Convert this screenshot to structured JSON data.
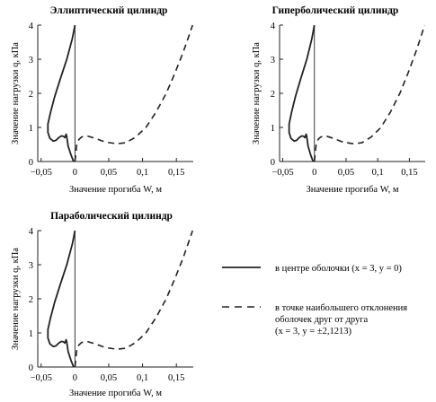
{
  "chart_data": [
    {
      "type": "line",
      "title": "Эллиптический цилиндр",
      "xlabel": "Значение прогиба W, м",
      "ylabel": "Значение нагрузки q, кПа",
      "xlim": [
        -0.055,
        0.175
      ],
      "ylim": [
        0,
        4
      ],
      "xticks": [
        "−0,05",
        "0",
        "0,05",
        "0,1",
        "0,15"
      ],
      "yticks": [
        "0",
        "1",
        "2",
        "3",
        "4"
      ],
      "series": [
        {
          "name": "в центре оболочки (x = 3, y = 0)",
          "style": "solid",
          "x": [
            0.0,
            -0.004,
            -0.012,
            -0.022,
            -0.03,
            -0.036,
            -0.04,
            -0.04,
            -0.037,
            -0.032,
            -0.028,
            -0.024,
            -0.02,
            -0.017,
            -0.015,
            -0.013,
            -0.012,
            -0.01,
            -0.006,
            -0.004,
            -0.003,
            -0.002
          ],
          "y": [
            4.0,
            3.6,
            3.0,
            2.4,
            1.9,
            1.45,
            1.1,
            0.85,
            0.68,
            0.6,
            0.62,
            0.7,
            0.75,
            0.74,
            0.7,
            0.8,
            0.72,
            0.45,
            0.2,
            0.1,
            0.05,
            0.0
          ]
        },
        {
          "name": "в точке наибольшего отклонения оболочек друг от друга (x = 3, y = ±2,1213)",
          "style": "dashed",
          "x": [
            0.0,
            0.003,
            0.006,
            0.01,
            0.018,
            0.03,
            0.045,
            0.062,
            0.075,
            0.09,
            0.105,
            0.12,
            0.135,
            0.148,
            0.16,
            0.168,
            0.174
          ],
          "y": [
            0.0,
            0.55,
            0.65,
            0.72,
            0.75,
            0.68,
            0.57,
            0.52,
            0.55,
            0.72,
            1.0,
            1.45,
            2.0,
            2.6,
            3.2,
            3.65,
            4.0
          ]
        }
      ]
    },
    {
      "type": "line",
      "title": "Гиперболический цилиндр",
      "xlabel": "Значение прогиба W, м",
      "ylabel": "Значение нагрузки q, кПа",
      "xlim": [
        -0.055,
        0.175
      ],
      "ylim": [
        0,
        4
      ],
      "xticks": [
        "−0,05",
        "0",
        "0,05",
        "0,1",
        "0,15"
      ],
      "yticks": [
        "0",
        "1",
        "2",
        "3",
        "4"
      ],
      "series": [
        {
          "name": "в центре оболочки (x = 3, y = 0)",
          "style": "solid",
          "x": [
            0.0,
            -0.004,
            -0.012,
            -0.022,
            -0.03,
            -0.036,
            -0.04,
            -0.04,
            -0.037,
            -0.032,
            -0.028,
            -0.024,
            -0.02,
            -0.017,
            -0.015,
            -0.013,
            -0.012,
            -0.01,
            -0.006,
            -0.004,
            -0.003,
            -0.002
          ],
          "y": [
            4.0,
            3.6,
            3.0,
            2.4,
            1.9,
            1.45,
            1.1,
            0.85,
            0.68,
            0.6,
            0.62,
            0.7,
            0.75,
            0.74,
            0.7,
            0.8,
            0.72,
            0.45,
            0.2,
            0.1,
            0.05,
            0.0
          ]
        },
        {
          "name": "в точке наибольшего отклонения оболочек друг от друга (x = 3, y = ±2,1213)",
          "style": "dashed",
          "x": [
            0.0,
            0.003,
            0.006,
            0.01,
            0.018,
            0.03,
            0.045,
            0.062,
            0.075,
            0.09,
            0.105,
            0.12,
            0.135,
            0.148,
            0.16,
            0.168,
            0.174
          ],
          "y": [
            0.0,
            0.55,
            0.65,
            0.72,
            0.75,
            0.68,
            0.57,
            0.52,
            0.55,
            0.72,
            1.0,
            1.45,
            2.0,
            2.6,
            3.2,
            3.65,
            4.0
          ]
        }
      ]
    },
    {
      "type": "line",
      "title": "Параболический цилиндр",
      "xlabel": "Значение прогиба W, м",
      "ylabel": "Значение нагрузки q, кПа",
      "xlim": [
        -0.055,
        0.175
      ],
      "ylim": [
        0,
        4
      ],
      "xticks": [
        "−0,05",
        "0",
        "0,05",
        "0,1",
        "0,15"
      ],
      "yticks": [
        "0",
        "1",
        "2",
        "3",
        "4"
      ],
      "series": [
        {
          "name": "в центре оболочки (x = 3, y = 0)",
          "style": "solid",
          "x": [
            0.0,
            -0.004,
            -0.012,
            -0.022,
            -0.03,
            -0.036,
            -0.04,
            -0.04,
            -0.037,
            -0.032,
            -0.028,
            -0.024,
            -0.02,
            -0.017,
            -0.015,
            -0.013,
            -0.012,
            -0.01,
            -0.006,
            -0.004,
            -0.003,
            -0.002
          ],
          "y": [
            4.0,
            3.6,
            3.0,
            2.4,
            1.9,
            1.45,
            1.1,
            0.85,
            0.68,
            0.6,
            0.62,
            0.7,
            0.75,
            0.74,
            0.7,
            0.8,
            0.72,
            0.45,
            0.2,
            0.1,
            0.05,
            0.0
          ]
        },
        {
          "name": "в точке наибольшего отклонения оболочек друг от друга (x = 3, y = ±2,1213)",
          "style": "dashed",
          "x": [
            0.0,
            0.003,
            0.006,
            0.01,
            0.018,
            0.03,
            0.045,
            0.062,
            0.075,
            0.09,
            0.105,
            0.12,
            0.135,
            0.148,
            0.16,
            0.168,
            0.174
          ],
          "y": [
            0.0,
            0.55,
            0.65,
            0.72,
            0.75,
            0.68,
            0.57,
            0.52,
            0.55,
            0.72,
            1.0,
            1.45,
            2.0,
            2.6,
            3.2,
            3.65,
            4.0
          ]
        }
      ]
    }
  ],
  "legend": {
    "items": [
      {
        "style": "solid",
        "lines": [
          "в центре оболочки (x = 3, y = 0)"
        ]
      },
      {
        "style": "dashed",
        "lines": [
          "в точке наибольшего отклонения",
          "оболочек друг от друга",
          "(x = 3, y = ±2,1213)"
        ]
      }
    ]
  },
  "colors": {
    "line": "#222222",
    "background": "#ffffff"
  }
}
